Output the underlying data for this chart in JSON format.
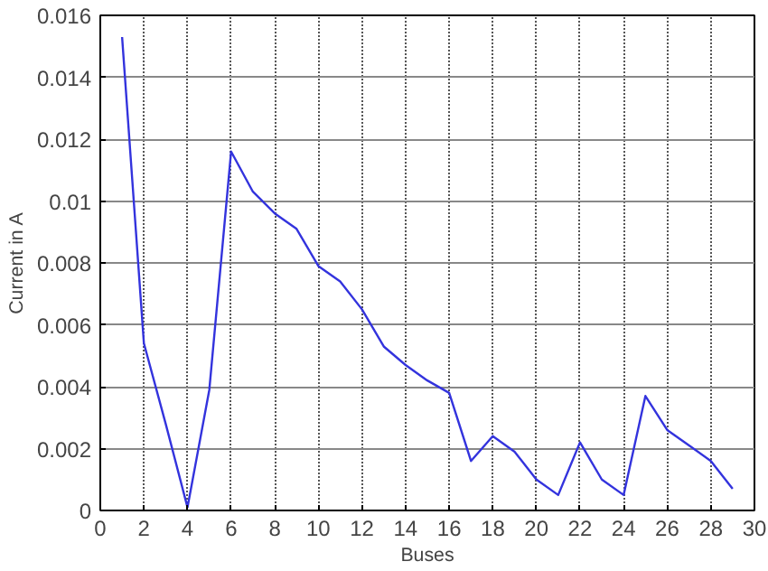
{
  "chart_data": {
    "type": "line",
    "xlabel": "Buses",
    "ylabel": "Current in A",
    "x": [
      1,
      2,
      3,
      4,
      5,
      6,
      7,
      8,
      9,
      10,
      11,
      12,
      13,
      14,
      15,
      16,
      17,
      18,
      19,
      20,
      21,
      22,
      23,
      24,
      25,
      26,
      27,
      28,
      29
    ],
    "series": [
      {
        "color": "#3333dd",
        "values": [
          0.0153,
          0.0054,
          0.0028,
          0.0001,
          0.0039,
          0.0116,
          0.0103,
          0.0096,
          0.0091,
          0.0079,
          0.0074,
          0.0065,
          0.0053,
          0.0047,
          0.0042,
          0.0038,
          0.0016,
          0.0024,
          0.0019,
          0.001,
          0.0005,
          0.0022,
          0.001,
          0.0005,
          0.0037,
          0.0026,
          0.0021,
          0.0016,
          0.0007
        ]
      }
    ],
    "xlim": [
      0,
      30
    ],
    "xticks": [
      0,
      2,
      4,
      6,
      8,
      10,
      12,
      14,
      16,
      18,
      20,
      22,
      24,
      26,
      28,
      30
    ],
    "ylim": [
      0,
      0.016
    ],
    "yticks": [
      0,
      0.002,
      0.004,
      0.006,
      0.008,
      0.01,
      0.012,
      0.014,
      0.016
    ],
    "grid": true,
    "marker": "none",
    "line_style": "solid"
  }
}
